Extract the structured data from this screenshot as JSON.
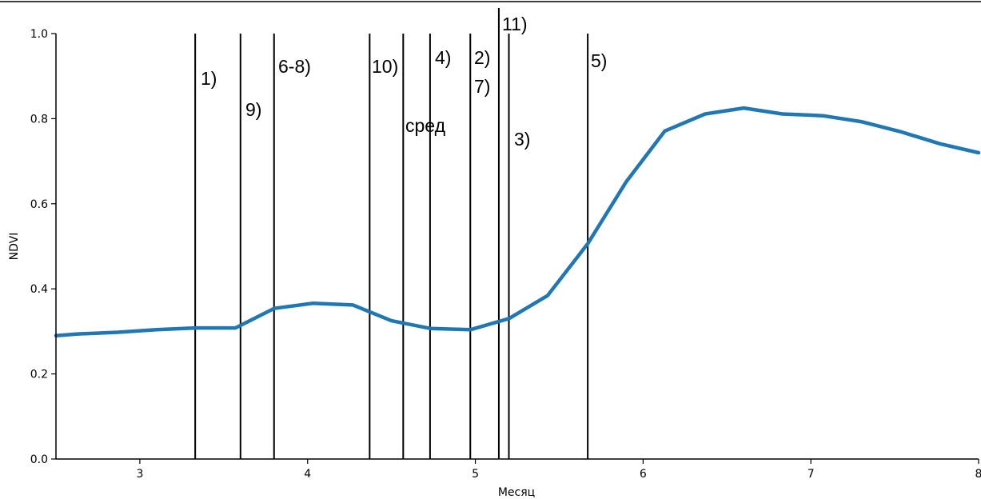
{
  "chart_data": {
    "type": "line",
    "xlabel": "Месяц",
    "ylabel": "NDVI",
    "xlim": [
      2.5,
      8.0
    ],
    "ylim": [
      0.0,
      1.0
    ],
    "xticks": [
      "3",
      "4",
      "5",
      "6",
      "7",
      "8"
    ],
    "yticks": [
      "0.0",
      "0.2",
      "0.4",
      "0.6",
      "0.8",
      "1.0"
    ],
    "grid": false,
    "line_color": "#1f77b4",
    "series": [
      {
        "x": [
          2.5,
          2.63,
          2.87,
          3.1,
          3.33,
          3.57,
          3.8,
          4.03,
          4.27,
          4.5,
          4.73,
          4.97,
          5.2,
          5.43,
          5.67,
          5.9,
          6.13,
          6.37,
          6.6,
          6.83,
          7.07,
          7.3,
          7.53,
          7.77,
          8.0
        ],
        "y": [
          0.29,
          0.294,
          0.298,
          0.304,
          0.308,
          0.308,
          0.354,
          0.366,
          0.362,
          0.325,
          0.307,
          0.304,
          0.33,
          0.384,
          0.506,
          0.652,
          0.771,
          0.811,
          0.825,
          0.811,
          0.807,
          0.793,
          0.77,
          0.741,
          0.72
        ]
      }
    ],
    "vlines": [
      {
        "x": 3.33,
        "label": "1)"
      },
      {
        "x": 3.6,
        "label": "9)"
      },
      {
        "x": 3.8,
        "label": "6-8)"
      },
      {
        "x": 4.37,
        "label": "10)"
      },
      {
        "x": 4.57,
        "label": "сред"
      },
      {
        "x": 4.73,
        "label": "4)"
      },
      {
        "x": 4.97,
        "label": "2)"
      },
      {
        "x": 4.97,
        "label": "7)"
      },
      {
        "x": 5.14,
        "label": "11)"
      },
      {
        "x": 5.2,
        "label": "3)"
      },
      {
        "x": 5.67,
        "label": "5)"
      }
    ]
  }
}
